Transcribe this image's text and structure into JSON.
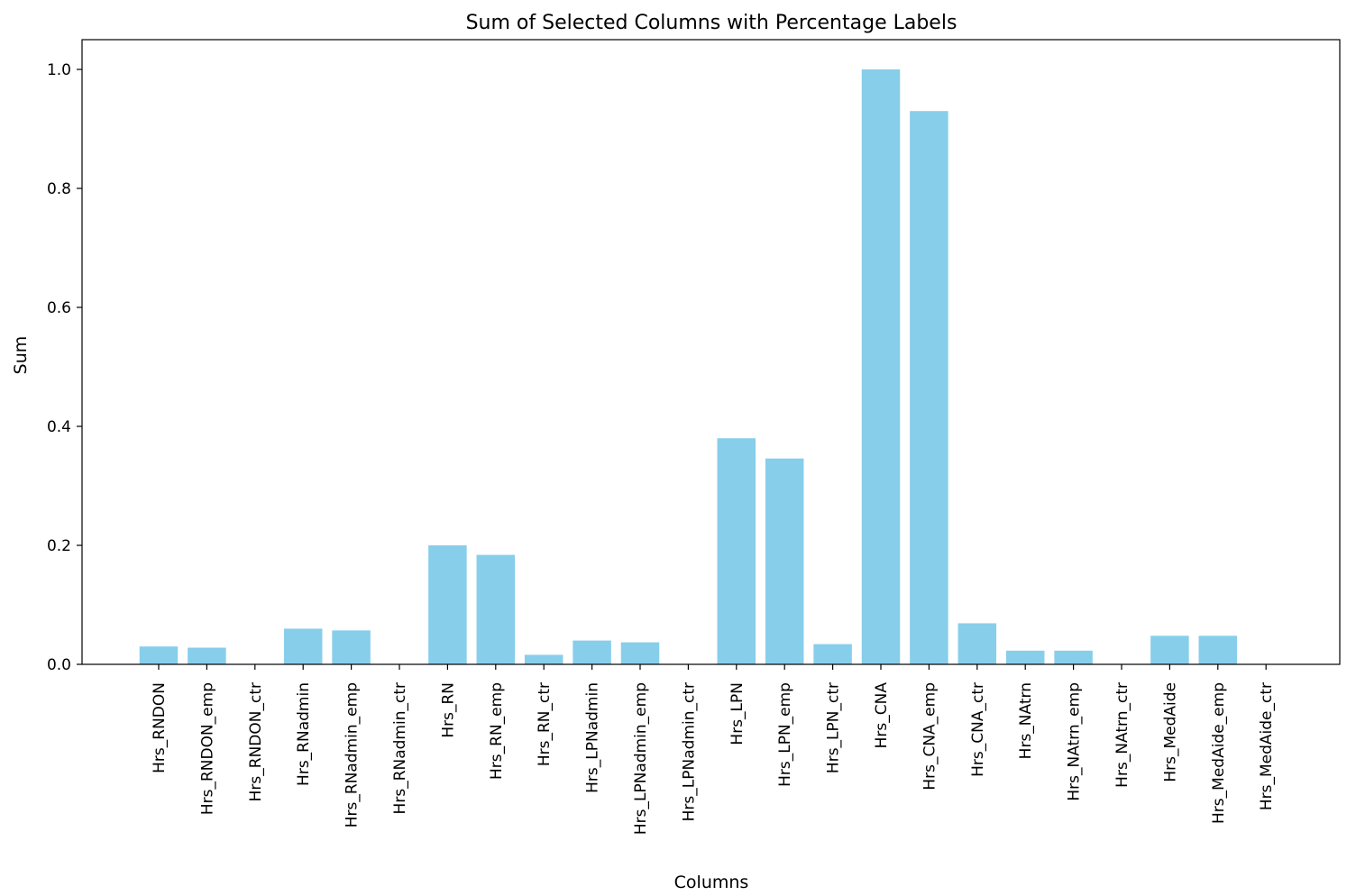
{
  "chart_data": {
    "type": "bar",
    "title": "Sum of Selected Columns with Percentage Labels",
    "xlabel": "Columns",
    "ylabel": "Sum",
    "ylim": [
      0,
      1.05
    ],
    "yticks": [
      0.0,
      0.2,
      0.4,
      0.6,
      0.8,
      1.0
    ],
    "ytick_labels": [
      "0.0",
      "0.2",
      "0.4",
      "0.6",
      "0.8",
      "1.0"
    ],
    "grid": false,
    "bar_color": "#87CEEB",
    "categories": [
      "Hrs_RNDON",
      "Hrs_RNDON_emp",
      "Hrs_RNDON_ctr",
      "Hrs_RNadmin",
      "Hrs_RNadmin_emp",
      "Hrs_RNadmin_ctr",
      "Hrs_RN",
      "Hrs_RN_emp",
      "Hrs_RN_ctr",
      "Hrs_LPNadmin",
      "Hrs_LPNadmin_emp",
      "Hrs_LPNadmin_ctr",
      "Hrs_LPN",
      "Hrs_LPN_emp",
      "Hrs_LPN_ctr",
      "Hrs_CNA",
      "Hrs_CNA_emp",
      "Hrs_CNA_ctr",
      "Hrs_NAtrn",
      "Hrs_NAtrn_emp",
      "Hrs_NAtrn_ctr",
      "Hrs_MedAide",
      "Hrs_MedAide_emp",
      "Hrs_MedAide_ctr"
    ],
    "values": [
      0.03,
      0.028,
      0.0,
      0.06,
      0.057,
      0.0,
      0.2,
      0.184,
      0.016,
      0.04,
      0.037,
      0.0,
      0.38,
      0.346,
      0.034,
      1.0,
      0.93,
      0.069,
      0.023,
      0.023,
      0.0,
      0.048,
      0.048,
      0.0
    ]
  }
}
